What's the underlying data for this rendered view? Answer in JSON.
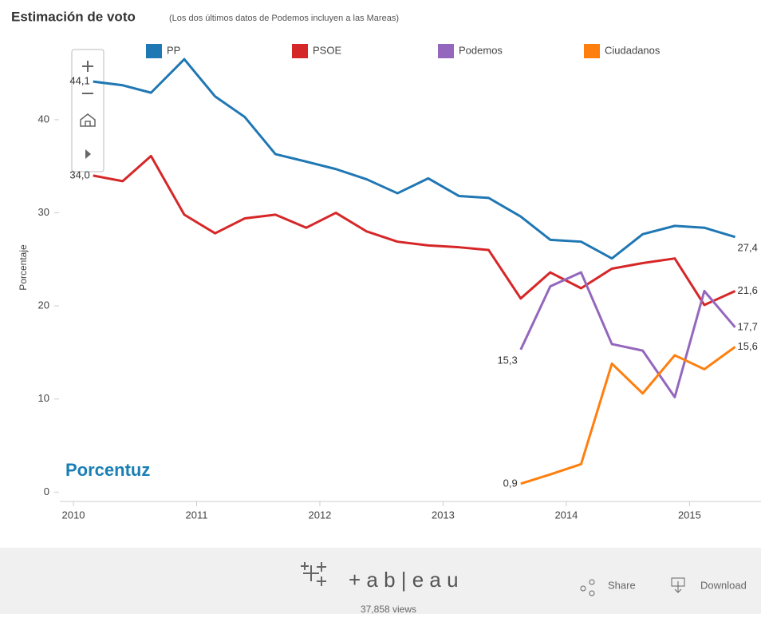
{
  "chart_data": {
    "type": "line",
    "title": "Estimación de voto",
    "subtitle": "(Los dos últimos datos de Podemos incluyen a las Mareas)",
    "y_label": "Porcentaje",
    "x": [
      2010.16,
      2010.4,
      2010.63,
      2010.9,
      2011.15,
      2011.39,
      2011.64,
      2011.89,
      2012.13,
      2012.38,
      2012.63,
      2012.88,
      2013.13,
      2013.37,
      2013.63,
      2013.87,
      2014.12,
      2014.37,
      2014.62,
      2014.88,
      2015.12,
      2015.37
    ],
    "series": [
      {
        "name": "PP",
        "color": "#1f77b4",
        "values": [
          44.1,
          43.7,
          42.9,
          46.5,
          42.5,
          40.3,
          36.3,
          35.5,
          34.7,
          33.6,
          32.1,
          33.7,
          31.8,
          31.6,
          29.6,
          27.1,
          26.9,
          25.1,
          27.7,
          28.6,
          28.4,
          27.4
        ],
        "value_labels": [
          "44,1",
          null,
          null,
          null,
          null,
          null,
          null,
          null,
          null,
          null,
          null,
          null,
          null,
          null,
          null,
          null,
          null,
          null,
          null,
          null,
          null,
          "27,4"
        ]
      },
      {
        "name": "PSOE",
        "color": "#d62728",
        "values": [
          34.0,
          33.4,
          36.1,
          29.8,
          27.8,
          29.4,
          29.8,
          28.4,
          30.0,
          28.0,
          26.9,
          26.5,
          26.3,
          26.0,
          20.8,
          23.6,
          21.9,
          24.0,
          24.6,
          25.1,
          20.1,
          21.6
        ],
        "value_labels": [
          "34,0",
          null,
          null,
          null,
          null,
          null,
          null,
          null,
          null,
          null,
          null,
          null,
          null,
          null,
          null,
          null,
          null,
          null,
          null,
          null,
          null,
          "21,6"
        ]
      },
      {
        "name": "Podemos",
        "color": "#9467bd",
        "values": [
          null,
          null,
          null,
          null,
          null,
          null,
          null,
          null,
          null,
          null,
          null,
          null,
          null,
          null,
          15.3,
          22.1,
          23.6,
          15.9,
          15.2,
          10.2,
          21.6,
          17.7
        ],
        "value_labels": [
          null,
          null,
          null,
          null,
          null,
          null,
          null,
          null,
          null,
          null,
          null,
          null,
          null,
          null,
          "15,3",
          null,
          null,
          null,
          null,
          null,
          null,
          "17,7"
        ]
      },
      {
        "name": "Ciudadanos",
        "color": "#ff7f0e",
        "values": [
          null,
          null,
          null,
          null,
          null,
          null,
          null,
          null,
          null,
          null,
          null,
          null,
          null,
          null,
          0.9,
          1.9,
          3.0,
          13.8,
          10.6,
          14.7,
          13.2,
          15.6
        ],
        "value_labels": [
          null,
          null,
          null,
          null,
          null,
          null,
          null,
          null,
          null,
          null,
          null,
          null,
          null,
          null,
          "0,9",
          null,
          null,
          null,
          null,
          null,
          null,
          "15,6"
        ]
      }
    ],
    "xlim": [
      2009.89,
      2015.58
    ],
    "xticks": [
      2010,
      2011,
      2012,
      2013,
      2014,
      2015
    ],
    "ylim": [
      -1,
      49
    ],
    "yticks": [
      0,
      10,
      20,
      30,
      40
    ],
    "grid": false,
    "legend": "top"
  },
  "logo": "Porcentuz",
  "footer": {
    "brand": "+ a b | e a u",
    "views": "37,858 views",
    "share": "Share",
    "download": "Download"
  }
}
